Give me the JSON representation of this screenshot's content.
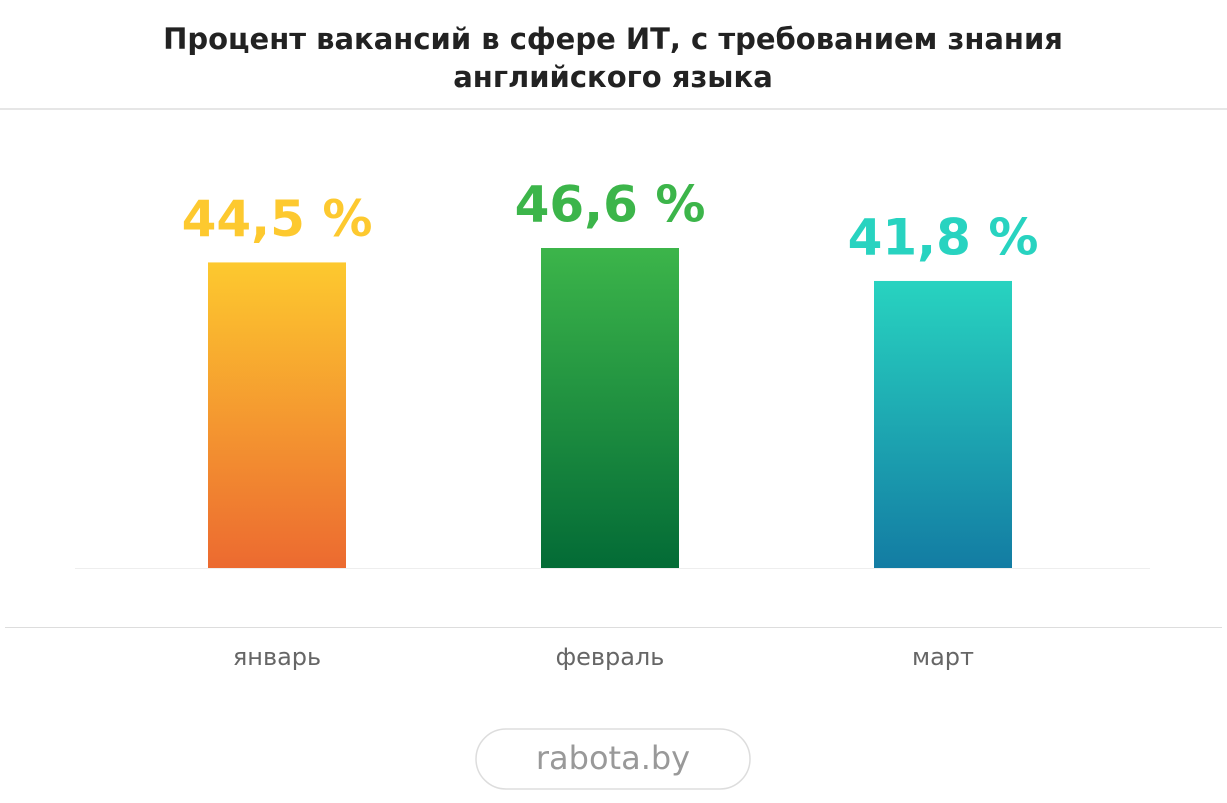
{
  "chart_data": {
    "type": "bar",
    "title": "Процент вакансий в сфере ИТ, с требованием знания английского языка",
    "categories": [
      "январь",
      "февраль",
      "март"
    ],
    "values": [
      44.5,
      46.6,
      41.8
    ],
    "value_labels": [
      "44,5 %",
      "46,6 %",
      "41,8 %"
    ],
    "colors": [
      [
        "#fdc92f",
        "#ec6a30"
      ],
      [
        "#3cb54a",
        "#036b36"
      ],
      [
        "#28d3c0",
        "#137ca3"
      ]
    ],
    "source": "rabota.by"
  }
}
